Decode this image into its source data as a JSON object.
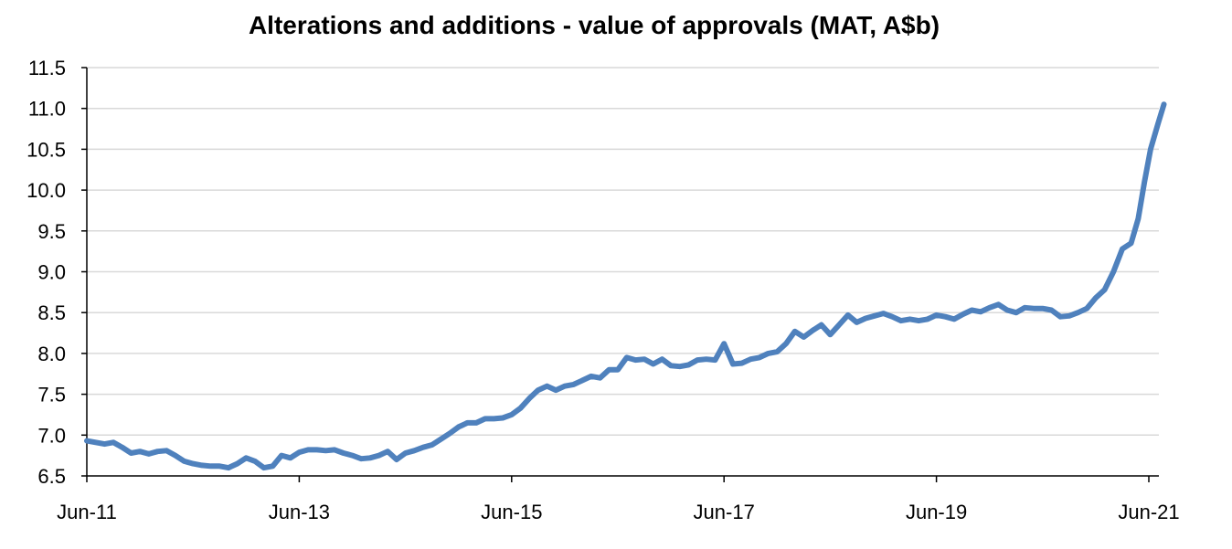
{
  "chart_data": {
    "type": "line",
    "title": "Alterations and additions - value of approvals (MAT, A$b)",
    "xlabel": "",
    "ylabel": "",
    "ylim": [
      6.5,
      11.5
    ],
    "yticks": [
      "6.5",
      "7.0",
      "7.5",
      "8.0",
      "8.5",
      "9.0",
      "9.5",
      "10.0",
      "10.5",
      "11.0",
      "11.5"
    ],
    "xtick_labels": [
      "Jun-11",
      "Jun-13",
      "Jun-15",
      "Jun-17",
      "Jun-19",
      "Jun-21"
    ],
    "x_range_months": [
      0,
      120
    ],
    "grid": true,
    "legend": "none",
    "series": [
      {
        "name": "Alterations and additions",
        "color": "#4f81bd",
        "points": [
          [
            0,
            6.93
          ],
          [
            2,
            6.89
          ],
          [
            3,
            6.91
          ],
          [
            4,
            6.85
          ],
          [
            5,
            6.78
          ],
          [
            6,
            6.8
          ],
          [
            7,
            6.77
          ],
          [
            8,
            6.8
          ],
          [
            9,
            6.81
          ],
          [
            10,
            6.75
          ],
          [
            11,
            6.68
          ],
          [
            12,
            6.65
          ],
          [
            13,
            6.63
          ],
          [
            14,
            6.62
          ],
          [
            15,
            6.62
          ],
          [
            16,
            6.6
          ],
          [
            17,
            6.65
          ],
          [
            18,
            6.72
          ],
          [
            19,
            6.68
          ],
          [
            20,
            6.6
          ],
          [
            21,
            6.62
          ],
          [
            22,
            6.75
          ],
          [
            23,
            6.72
          ],
          [
            24,
            6.79
          ],
          [
            25,
            6.82
          ],
          [
            26,
            6.82
          ],
          [
            27,
            6.81
          ],
          [
            28,
            6.82
          ],
          [
            29,
            6.78
          ],
          [
            30,
            6.75
          ],
          [
            31,
            6.71
          ],
          [
            32,
            6.72
          ],
          [
            33,
            6.75
          ],
          [
            34,
            6.8
          ],
          [
            35,
            6.7
          ],
          [
            36,
            6.78
          ],
          [
            37,
            6.81
          ],
          [
            38,
            6.85
          ],
          [
            39,
            6.88
          ],
          [
            40,
            6.95
          ],
          [
            41,
            7.02
          ],
          [
            42,
            7.1
          ],
          [
            43,
            7.15
          ],
          [
            44,
            7.15
          ],
          [
            45,
            7.2
          ],
          [
            46,
            7.2
          ],
          [
            47,
            7.21
          ],
          [
            48,
            7.25
          ],
          [
            49,
            7.33
          ],
          [
            50,
            7.45
          ],
          [
            51,
            7.55
          ],
          [
            52,
            7.6
          ],
          [
            53,
            7.55
          ],
          [
            54,
            7.6
          ],
          [
            55,
            7.62
          ],
          [
            56,
            7.67
          ],
          [
            57,
            7.72
          ],
          [
            58,
            7.7
          ],
          [
            59,
            7.8
          ],
          [
            60,
            7.8
          ],
          [
            61,
            7.95
          ],
          [
            62,
            7.92
          ],
          [
            63,
            7.93
          ],
          [
            64,
            7.87
          ],
          [
            65,
            7.93
          ],
          [
            66,
            7.85
          ],
          [
            67,
            7.84
          ],
          [
            68,
            7.86
          ],
          [
            69,
            7.92
          ],
          [
            70,
            7.93
          ],
          [
            71,
            7.92
          ],
          [
            72,
            8.12
          ],
          [
            73,
            7.87
          ],
          [
            74,
            7.88
          ],
          [
            75,
            7.93
          ],
          [
            76,
            7.95
          ],
          [
            77,
            8.0
          ],
          [
            78,
            8.02
          ],
          [
            79,
            8.12
          ],
          [
            80,
            8.27
          ],
          [
            81,
            8.2
          ],
          [
            82,
            8.28
          ],
          [
            83,
            8.35
          ],
          [
            84,
            8.23
          ],
          [
            85,
            8.35
          ],
          [
            86,
            8.47
          ],
          [
            87,
            8.38
          ],
          [
            88,
            8.43
          ],
          [
            89,
            8.46
          ],
          [
            90,
            8.49
          ],
          [
            91,
            8.45
          ],
          [
            92,
            8.4
          ],
          [
            93,
            8.42
          ],
          [
            94,
            8.4
          ],
          [
            95,
            8.42
          ],
          [
            96,
            8.47
          ],
          [
            97,
            8.45
          ],
          [
            98,
            8.42
          ],
          [
            99,
            8.48
          ],
          [
            100,
            8.53
          ],
          [
            101,
            8.51
          ],
          [
            102,
            8.56
          ],
          [
            103,
            8.6
          ],
          [
            104,
            8.53
          ],
          [
            105,
            8.5
          ],
          [
            106,
            8.56
          ],
          [
            107,
            8.55
          ],
          [
            108,
            8.55
          ],
          [
            109,
            8.53
          ],
          [
            110,
            8.45
          ],
          [
            111,
            8.46
          ],
          [
            112,
            8.5
          ],
          [
            113,
            8.55
          ],
          [
            114,
            8.68
          ],
          [
            115,
            8.78
          ],
          [
            116,
            9.0
          ],
          [
            117,
            9.28
          ],
          [
            118,
            9.35
          ],
          [
            118.8,
            9.65
          ],
          [
            119.5,
            10.1
          ],
          [
            120.2,
            10.5
          ],
          [
            121,
            10.8
          ],
          [
            121.7,
            11.05
          ]
        ]
      }
    ]
  }
}
